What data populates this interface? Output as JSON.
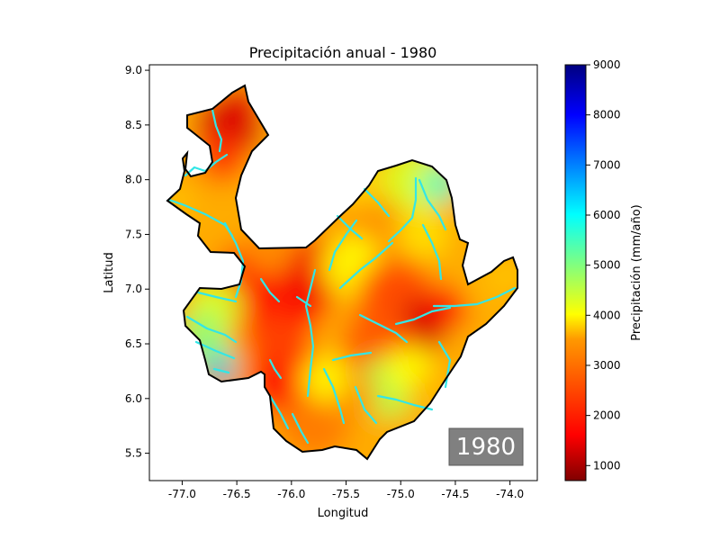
{
  "chart_data": {
    "type": "heatmap",
    "title": "Precipitación anual - 1980",
    "xlabel": "Longitud",
    "ylabel": "Latitud",
    "xlim": [
      -77.3,
      -73.75
    ],
    "ylim": [
      5.25,
      9.05
    ],
    "x_ticks": [
      "-77.0",
      "-76.5",
      "-76.0",
      "-75.5",
      "-75.0",
      "-74.5",
      "-74.0"
    ],
    "x_tick_values": [
      -77.0,
      -76.5,
      -76.0,
      -75.5,
      -75.0,
      -74.5,
      -74.0
    ],
    "y_ticks": [
      "5.5",
      "6.0",
      "6.5",
      "7.0",
      "7.5",
      "8.0",
      "8.5",
      "9.0"
    ],
    "y_tick_values": [
      5.5,
      6.0,
      6.5,
      7.0,
      7.5,
      8.0,
      8.5,
      9.0
    ],
    "colorbar": {
      "label": "Precipitación (mm/año)",
      "min": 700,
      "max": 9000,
      "ticks": [
        "1000",
        "2000",
        "3000",
        "4000",
        "5000",
        "6000",
        "7000",
        "8000",
        "9000"
      ],
      "tick_values": [
        1000,
        2000,
        3000,
        4000,
        5000,
        6000,
        7000,
        8000,
        9000
      ],
      "colormap": "jet_r"
    },
    "year_badge": "1980",
    "colors": {
      "region_border": "#000000",
      "rivers": "#33e6e6",
      "badge_bg": "#808080",
      "badge_text": "#ffffff"
    }
  }
}
